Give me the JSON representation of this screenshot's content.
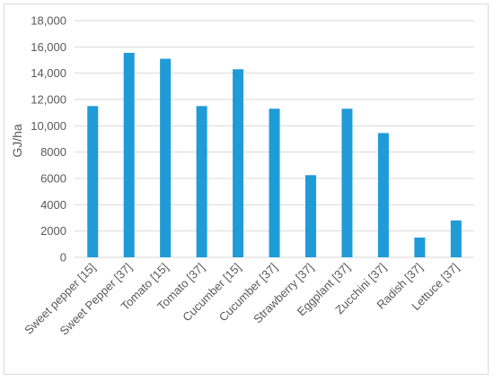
{
  "chart_data": {
    "type": "bar",
    "categories": [
      "Sweet pepper [15]",
      "Sweet Pepper [37]",
      "Tomato [15]",
      "Tomato [37]",
      "Cucumber [15]",
      "Cucumber [37]",
      "Strawberry [37]",
      "Eggplant [37]",
      "Zucchini [37]",
      "Radish [37]",
      "Lettuce [37]"
    ],
    "values": [
      11500,
      15550,
      15100,
      11500,
      14300,
      11300,
      6250,
      11300,
      9450,
      1500,
      2800
    ],
    "title": "",
    "xlabel": "",
    "ylabel": "GJ/ha",
    "ylim": [
      0,
      18000
    ],
    "yticks": [
      0,
      2000,
      4000,
      6000,
      8000,
      10000,
      12000,
      14000,
      16000,
      18000
    ],
    "ytick_labels": [
      "0",
      "2000",
      "4000",
      "6000",
      "8000",
      "10,000",
      "12,000",
      "14,000",
      "16,000",
      "18,000"
    ],
    "grid": true,
    "legend": "none",
    "bar_color": "#1f9bd7",
    "grid_color": "#d9d9d9"
  }
}
